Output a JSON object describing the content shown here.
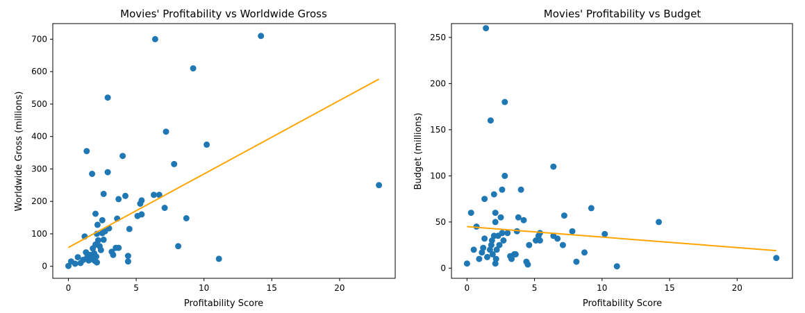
{
  "chart_data": [
    {
      "type": "scatter",
      "title": "Movies' Profitability vs Worldwide Gross",
      "xlabel": "Profitability Score",
      "ylabel": "Worldwide Gross (millions)",
      "xlim": [
        -1.15,
        24.1
      ],
      "ylim": [
        -37,
        748
      ],
      "xticks": [
        0,
        5,
        10,
        15,
        20
      ],
      "yticks": [
        0,
        100,
        200,
        300,
        400,
        500,
        600,
        700
      ],
      "point_color": "#1f77b4",
      "trend_color": "#ffa500",
      "trend": {
        "x": [
          0,
          22.9
        ],
        "y": [
          58,
          577
        ]
      },
      "points": [
        [
          0.0,
          1
        ],
        [
          0.2,
          15
        ],
        [
          0.5,
          8
        ],
        [
          0.7,
          28
        ],
        [
          0.9,
          10
        ],
        [
          1.1,
          20
        ],
        [
          1.2,
          92
        ],
        [
          1.3,
          43
        ],
        [
          1.35,
          355
        ],
        [
          1.4,
          28
        ],
        [
          1.5,
          18
        ],
        [
          1.6,
          35
        ],
        [
          1.7,
          22
        ],
        [
          1.75,
          285
        ],
        [
          1.8,
          55
        ],
        [
          1.85,
          27
        ],
        [
          1.9,
          40
        ],
        [
          1.95,
          17
        ],
        [
          2.0,
          162
        ],
        [
          2.0,
          67
        ],
        [
          2.05,
          30
        ],
        [
          2.1,
          12
        ],
        [
          2.1,
          100
        ],
        [
          2.15,
          128
        ],
        [
          2.2,
          80
        ],
        [
          2.3,
          62
        ],
        [
          2.4,
          50
        ],
        [
          2.5,
          102
        ],
        [
          2.5,
          142
        ],
        [
          2.6,
          223
        ],
        [
          2.6,
          82
        ],
        [
          2.7,
          108
        ],
        [
          2.9,
          520
        ],
        [
          2.9,
          290
        ],
        [
          3.0,
          117
        ],
        [
          3.2,
          45
        ],
        [
          3.3,
          35
        ],
        [
          3.5,
          57
        ],
        [
          3.6,
          147
        ],
        [
          3.7,
          57
        ],
        [
          3.7,
          207
        ],
        [
          4.0,
          340
        ],
        [
          4.2,
          217
        ],
        [
          4.4,
          32
        ],
        [
          4.4,
          15
        ],
        [
          4.5,
          115
        ],
        [
          5.1,
          155
        ],
        [
          5.3,
          193
        ],
        [
          5.4,
          203
        ],
        [
          5.4,
          160
        ],
        [
          6.3,
          220
        ],
        [
          6.4,
          700
        ],
        [
          6.7,
          220
        ],
        [
          7.1,
          180
        ],
        [
          7.2,
          415
        ],
        [
          7.8,
          315
        ],
        [
          8.1,
          62
        ],
        [
          8.7,
          148
        ],
        [
          9.2,
          610
        ],
        [
          10.2,
          375
        ],
        [
          11.1,
          23
        ],
        [
          14.2,
          710
        ],
        [
          22.9,
          250
        ]
      ]
    },
    {
      "type": "scatter",
      "title": "Movies' Profitability vs Budget",
      "xlabel": "Profitability Score",
      "ylabel": "Budget (millions)",
      "xlim": [
        -1.15,
        24.1
      ],
      "ylim": [
        -11,
        265
      ],
      "xticks": [
        0,
        5,
        10,
        15,
        20
      ],
      "yticks": [
        0,
        50,
        100,
        150,
        200,
        250
      ],
      "point_color": "#1f77b4",
      "trend_color": "#ffa500",
      "trend": {
        "x": [
          0,
          22.9
        ],
        "y": [
          45,
          19
        ]
      },
      "points": [
        [
          0.0,
          5
        ],
        [
          0.3,
          60
        ],
        [
          0.5,
          20
        ],
        [
          0.7,
          45
        ],
        [
          0.9,
          10
        ],
        [
          1.1,
          17
        ],
        [
          1.2,
          22
        ],
        [
          1.3,
          75
        ],
        [
          1.3,
          32
        ],
        [
          1.4,
          260
        ],
        [
          1.5,
          12
        ],
        [
          1.7,
          20
        ],
        [
          1.75,
          160
        ],
        [
          1.8,
          25
        ],
        [
          1.85,
          30
        ],
        [
          1.9,
          15
        ],
        [
          2.0,
          35
        ],
        [
          2.0,
          80
        ],
        [
          2.1,
          50
        ],
        [
          2.1,
          60
        ],
        [
          2.1,
          5
        ],
        [
          2.15,
          10
        ],
        [
          2.2,
          20
        ],
        [
          2.3,
          35
        ],
        [
          2.4,
          25
        ],
        [
          2.5,
          55
        ],
        [
          2.6,
          85
        ],
        [
          2.6,
          38
        ],
        [
          2.7,
          30
        ],
        [
          2.8,
          180
        ],
        [
          2.8,
          100
        ],
        [
          3.0,
          38
        ],
        [
          3.2,
          13
        ],
        [
          3.3,
          10
        ],
        [
          3.5,
          15
        ],
        [
          3.6,
          15
        ],
        [
          3.7,
          40
        ],
        [
          3.8,
          55
        ],
        [
          4.0,
          85
        ],
        [
          4.2,
          52
        ],
        [
          4.4,
          7
        ],
        [
          4.5,
          4
        ],
        [
          4.6,
          25
        ],
        [
          5.1,
          30
        ],
        [
          5.3,
          35
        ],
        [
          5.4,
          38
        ],
        [
          5.4,
          30
        ],
        [
          6.4,
          35
        ],
        [
          6.4,
          110
        ],
        [
          6.7,
          32
        ],
        [
          7.1,
          25
        ],
        [
          7.2,
          57
        ],
        [
          7.8,
          40
        ],
        [
          8.1,
          7
        ],
        [
          8.7,
          17
        ],
        [
          9.2,
          65
        ],
        [
          10.2,
          37
        ],
        [
          11.1,
          2
        ],
        [
          14.2,
          50
        ],
        [
          22.9,
          11
        ]
      ]
    }
  ]
}
